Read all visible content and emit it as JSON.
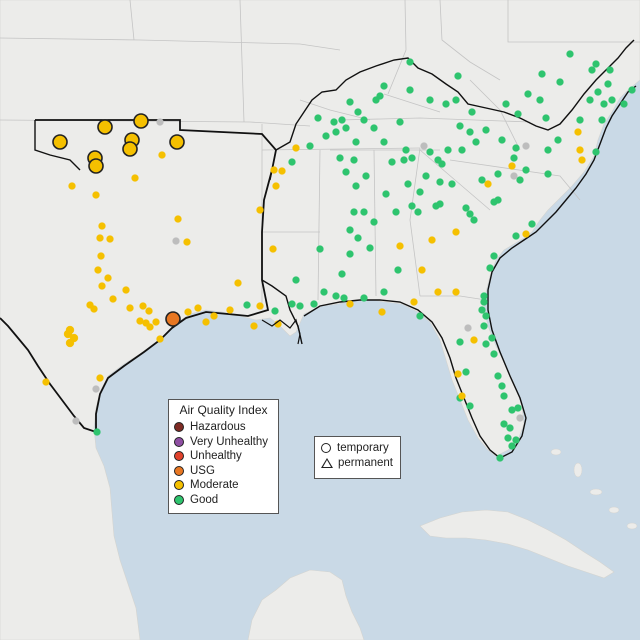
{
  "legend": {
    "title": "Air Quality Index",
    "categories": [
      {
        "label": "Hazardous",
        "color": "#7e2b24"
      },
      {
        "label": "Very Unhealthy",
        "color": "#8f4fa3"
      },
      {
        "label": "Unhealthy",
        "color": "#e0422c"
      },
      {
        "label": "USG",
        "color": "#e87722"
      },
      {
        "label": "Moderate",
        "color": "#f5c000"
      },
      {
        "label": "Good",
        "color": "#2ec46e"
      }
    ],
    "monitor_types": [
      {
        "label": "temporary",
        "icon": "circle-icon"
      },
      {
        "label": "permanent",
        "icon": "triangle-icon"
      }
    ]
  },
  "colors": {
    "ocean": "#c9d9e6",
    "land": "#ececea",
    "border": "#c4c4c4",
    "highlight_region": "#111111",
    "no_data": "#bdbdbd"
  }
}
